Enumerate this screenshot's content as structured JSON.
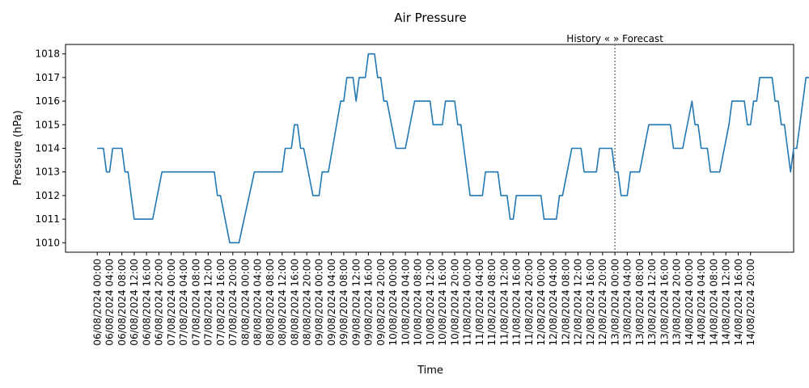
{
  "chart_data": {
    "type": "line",
    "title": "Air Pressure",
    "xlabel": "Time",
    "ylabel": "Pressure (hPa)",
    "ylim": [
      1009.6,
      1018.4
    ],
    "yticks": [
      1010,
      1011,
      1012,
      1013,
      1014,
      1015,
      1016,
      1017,
      1018
    ],
    "x_unit": "hours",
    "x_start": "06/08/2024 00:00",
    "x_tick_labels": [
      "06/08/2024 00:00",
      "06/08/2024 04:00",
      "06/08/2024 08:00",
      "06/08/2024 12:00",
      "06/08/2024 16:00",
      "06/08/2024 20:00",
      "07/08/2024 00:00",
      "07/08/2024 04:00",
      "07/08/2024 08:00",
      "07/08/2024 12:00",
      "07/08/2024 16:00",
      "07/08/2024 20:00",
      "08/08/2024 00:00",
      "08/08/2024 04:00",
      "08/08/2024 08:00",
      "08/08/2024 12:00",
      "08/08/2024 16:00",
      "08/08/2024 20:00",
      "09/08/2024 00:00",
      "09/08/2024 04:00",
      "09/08/2024 08:00",
      "09/08/2024 12:00",
      "09/08/2024 16:00",
      "09/08/2024 20:00",
      "10/08/2024 00:00",
      "10/08/2024 04:00",
      "10/08/2024 08:00",
      "10/08/2024 12:00",
      "10/08/2024 16:00",
      "10/08/2024 20:00",
      "11/08/2024 00:00",
      "11/08/2024 04:00",
      "11/08/2024 08:00",
      "11/08/2024 12:00",
      "11/08/2024 16:00",
      "11/08/2024 20:00",
      "12/08/2024 00:00",
      "12/08/2024 04:00",
      "12/08/2024 08:00",
      "12/08/2024 12:00",
      "12/08/2024 16:00",
      "12/08/2024 20:00",
      "13/08/2024 00:00",
      "13/08/2024 04:00",
      "13/08/2024 08:00",
      "13/08/2024 12:00",
      "13/08/2024 16:00",
      "13/08/2024 20:00",
      "14/08/2024 00:00",
      "14/08/2024 04:00",
      "14/08/2024 08:00",
      "14/08/2024 12:00",
      "14/08/2024 16:00",
      "14/08/2024 20:00"
    ],
    "annotation": {
      "text": "History «  » Forecast",
      "x": "13/08/2024 00:00"
    },
    "series": [
      {
        "color": "#1f77b4",
        "points": [
          [
            "06/08/2024 00:00",
            1014
          ],
          [
            "06/08/2024 02:00",
            1014
          ],
          [
            "06/08/2024 03:00",
            1013
          ],
          [
            "06/08/2024 04:00",
            1013
          ],
          [
            "06/08/2024 05:00",
            1014
          ],
          [
            "06/08/2024 08:00",
            1014
          ],
          [
            "06/08/2024 09:00",
            1013
          ],
          [
            "06/08/2024 10:00",
            1013
          ],
          [
            "06/08/2024 12:00",
            1011
          ],
          [
            "06/08/2024 18:00",
            1011
          ],
          [
            "06/08/2024 21:00",
            1013
          ],
          [
            "07/08/2024 14:00",
            1013
          ],
          [
            "07/08/2024 15:00",
            1012
          ],
          [
            "07/08/2024 16:00",
            1012
          ],
          [
            "07/08/2024 19:00",
            1010
          ],
          [
            "07/08/2024 22:00",
            1010
          ],
          [
            "08/08/2024 03:00",
            1013
          ],
          [
            "08/08/2024 12:00",
            1013
          ],
          [
            "08/08/2024 13:00",
            1014
          ],
          [
            "08/08/2024 15:00",
            1014
          ],
          [
            "08/08/2024 16:00",
            1015
          ],
          [
            "08/08/2024 17:00",
            1015
          ],
          [
            "08/08/2024 18:00",
            1014
          ],
          [
            "08/08/2024 19:00",
            1014
          ],
          [
            "08/08/2024 22:00",
            1012
          ],
          [
            "09/08/2024 00:00",
            1012
          ],
          [
            "09/08/2024 01:00",
            1013
          ],
          [
            "09/08/2024 03:00",
            1013
          ],
          [
            "09/08/2024 07:00",
            1016
          ],
          [
            "09/08/2024 08:00",
            1016
          ],
          [
            "09/08/2024 09:00",
            1017
          ],
          [
            "09/08/2024 11:00",
            1017
          ],
          [
            "09/08/2024 12:00",
            1016
          ],
          [
            "09/08/2024 13:00",
            1017
          ],
          [
            "09/08/2024 15:00",
            1017
          ],
          [
            "09/08/2024 16:00",
            1018
          ],
          [
            "09/08/2024 18:00",
            1018
          ],
          [
            "09/08/2024 19:00",
            1017
          ],
          [
            "09/08/2024 20:00",
            1017
          ],
          [
            "09/08/2024 21:00",
            1016
          ],
          [
            "09/08/2024 22:00",
            1016
          ],
          [
            "10/08/2024 01:00",
            1014
          ],
          [
            "10/08/2024 04:00",
            1014
          ],
          [
            "10/08/2024 07:00",
            1016
          ],
          [
            "10/08/2024 12:00",
            1016
          ],
          [
            "10/08/2024 13:00",
            1015
          ],
          [
            "10/08/2024 16:00",
            1015
          ],
          [
            "10/08/2024 17:00",
            1016
          ],
          [
            "10/08/2024 20:00",
            1016
          ],
          [
            "10/08/2024 21:00",
            1015
          ],
          [
            "10/08/2024 22:00",
            1015
          ],
          [
            "11/08/2024 01:00",
            1012
          ],
          [
            "11/08/2024 05:00",
            1012
          ],
          [
            "11/08/2024 06:00",
            1013
          ],
          [
            "11/08/2024 10:00",
            1013
          ],
          [
            "11/08/2024 11:00",
            1012
          ],
          [
            "11/08/2024 13:00",
            1012
          ],
          [
            "11/08/2024 14:00",
            1011
          ],
          [
            "11/08/2024 15:00",
            1011
          ],
          [
            "11/08/2024 16:00",
            1012
          ],
          [
            "12/08/2024 00:00",
            1012
          ],
          [
            "12/08/2024 01:00",
            1011
          ],
          [
            "12/08/2024 05:00",
            1011
          ],
          [
            "12/08/2024 06:00",
            1012
          ],
          [
            "12/08/2024 07:00",
            1012
          ],
          [
            "12/08/2024 10:00",
            1014
          ],
          [
            "12/08/2024 13:00",
            1014
          ],
          [
            "12/08/2024 14:00",
            1013
          ],
          [
            "12/08/2024 18:00",
            1013
          ],
          [
            "12/08/2024 19:00",
            1014
          ],
          [
            "12/08/2024 23:00",
            1014
          ],
          [
            "13/08/2024 00:00",
            1013
          ],
          [
            "13/08/2024 01:00",
            1013
          ],
          [
            "13/08/2024 02:00",
            1012
          ],
          [
            "13/08/2024 04:00",
            1012
          ],
          [
            "13/08/2024 05:00",
            1013
          ],
          [
            "13/08/2024 08:00",
            1013
          ],
          [
            "13/08/2024 11:00",
            1015
          ],
          [
            "13/08/2024 18:00",
            1015
          ],
          [
            "13/08/2024 19:00",
            1014
          ],
          [
            "13/08/2024 22:00",
            1014
          ],
          [
            "14/08/2024 01:00",
            1016
          ],
          [
            "14/08/2024 02:00",
            1015
          ],
          [
            "14/08/2024 03:00",
            1015
          ],
          [
            "14/08/2024 04:00",
            1014
          ],
          [
            "14/08/2024 06:00",
            1014
          ],
          [
            "14/08/2024 07:00",
            1013
          ],
          [
            "14/08/2024 10:00",
            1013
          ],
          [
            "14/08/2024 13:00",
            1015
          ],
          [
            "14/08/2024 14:00",
            1016
          ],
          [
            "14/08/2024 18:00",
            1016
          ],
          [
            "14/08/2024 19:00",
            1015
          ],
          [
            "14/08/2024 20:00",
            1015
          ],
          [
            "14/08/2024 21:00",
            1016
          ],
          [
            "14/08/2024 22:00",
            1016
          ],
          [
            "14/08/2024 23:00",
            1017
          ],
          [
            "15/08/2024 03:00",
            1017
          ],
          [
            "15/08/2024 04:00",
            1016
          ],
          [
            "15/08/2024 05:00",
            1016
          ],
          [
            "15/08/2024 06:00",
            1015
          ],
          [
            "15/08/2024 07:00",
            1015
          ],
          [
            "15/08/2024 09:00",
            1013
          ],
          [
            "15/08/2024 10:00",
            1014
          ],
          [
            "15/08/2024 11:00",
            1014
          ],
          [
            "15/08/2024 14:00",
            1017
          ],
          [
            "15/08/2024 16:00",
            1017
          ]
        ]
      }
    ]
  }
}
